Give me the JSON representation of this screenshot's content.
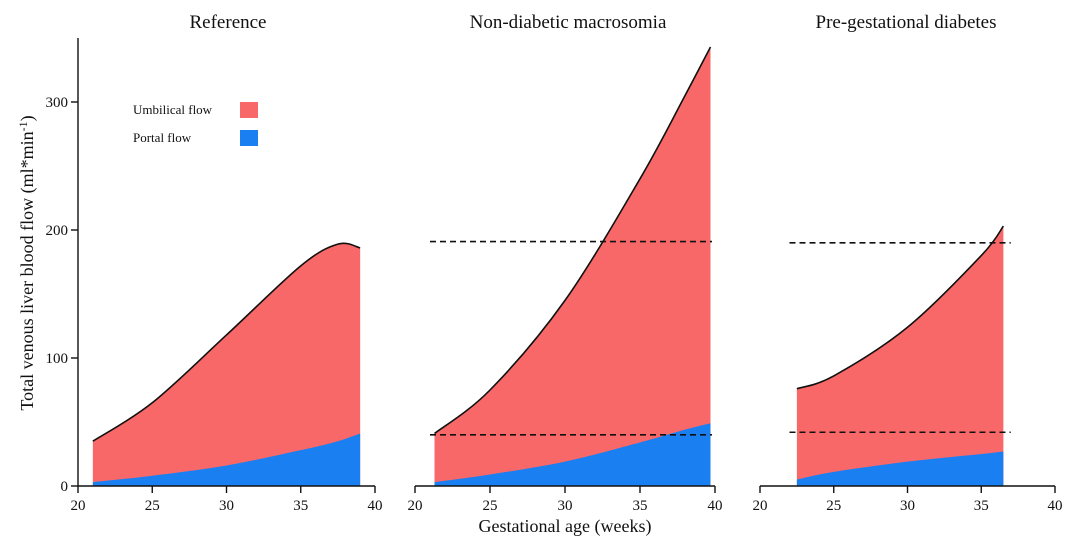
{
  "chart_data": {
    "type": "area",
    "ylabel": "Total venous liver blood flow (ml*min",
    "ylabel_sup": "-1",
    "ylabel_close": ")",
    "xlabel": "Gestational age (weeks)",
    "ylim": [
      0,
      350
    ],
    "yticks": [
      0,
      100,
      200,
      300
    ],
    "xlim": [
      20,
      40
    ],
    "xticks": [
      20,
      25,
      30,
      35,
      40
    ],
    "legend": {
      "placement": "top-left of first panel",
      "items": [
        {
          "name": "Umbilical flow",
          "color": "#f96868"
        },
        {
          "name": "Portal flow",
          "color": "#1a7ff0"
        }
      ]
    },
    "colors": {
      "umbilical": "#f96868",
      "portal": "#1a7ff0"
    },
    "panels": [
      {
        "title": "Reference",
        "x": [
          21,
          25,
          30,
          35,
          37.5,
          39
        ],
        "total": [
          35,
          65,
          118,
          172,
          189,
          186
        ],
        "portal": [
          3,
          8,
          16,
          28,
          35,
          41
        ],
        "reference_lines": []
      },
      {
        "title": "Non-diabetic macrosomia",
        "x": [
          21.3,
          25,
          30,
          35,
          38,
          39.7
        ],
        "total": [
          41,
          75,
          145,
          240,
          305,
          343
        ],
        "portal": [
          3,
          9,
          19,
          34,
          44,
          49
        ],
        "reference_lines": [
          191,
          40
        ]
      },
      {
        "title": "Pre-gestational diabetes",
        "x": [
          22.5,
          25,
          30,
          35,
          36.5
        ],
        "total": [
          76,
          86,
          124,
          180,
          203
        ],
        "portal": [
          5,
          11,
          19,
          25,
          27
        ],
        "reference_lines": [
          190,
          42
        ]
      }
    ]
  }
}
